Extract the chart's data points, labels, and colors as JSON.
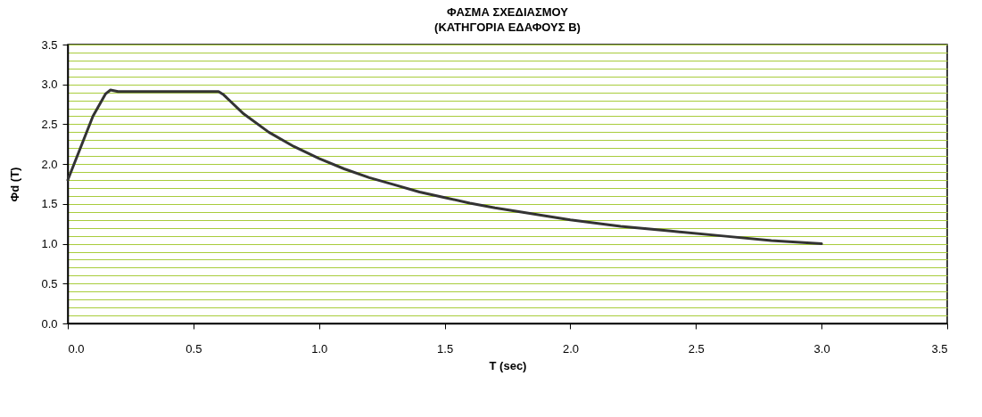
{
  "chart_data": {
    "type": "line",
    "title": "ΦΑΣΜΑ ΣΧΕΔΙΑΣΜΟΥ",
    "subtitle": "(ΚΑΤΗΓΟΡΙΑ ΕΔΑΦΟΥΣ Β)",
    "xlabel": "T (sec)",
    "ylabel": "Φd (T)",
    "x": [
      0,
      0.05,
      0.1,
      0.15,
      0.17,
      0.2,
      0.3,
      0.4,
      0.5,
      0.6,
      0.62,
      0.7,
      0.8,
      0.9,
      1.0,
      1.1,
      1.2,
      1.3,
      1.4,
      1.5,
      1.6,
      1.7,
      1.8,
      1.9,
      2.0,
      2.2,
      2.4,
      2.6,
      2.8,
      3.0
    ],
    "series": [
      {
        "color": "#333333",
        "values": [
          1.8,
          2.2,
          2.6,
          2.88,
          2.93,
          2.91,
          2.91,
          2.91,
          2.91,
          2.91,
          2.87,
          2.63,
          2.4,
          2.22,
          2.07,
          1.94,
          1.83,
          1.74,
          1.65,
          1.58,
          1.51,
          1.45,
          1.4,
          1.35,
          1.3,
          1.22,
          1.16,
          1.1,
          1.04,
          1.0
        ]
      }
    ],
    "xlim": [
      0,
      3.5
    ],
    "xticks": [
      {
        "value": 0,
        "label": "0.0"
      },
      {
        "value": 0.5,
        "label": "0.5"
      },
      {
        "value": 1,
        "label": "1.0"
      },
      {
        "value": 1.5,
        "label": "1.5"
      },
      {
        "value": 2,
        "label": "2.0"
      },
      {
        "value": 2.5,
        "label": "2.5"
      },
      {
        "value": 3,
        "label": "3.0"
      },
      {
        "value": 3.5,
        "label": "3.5"
      }
    ],
    "ylim": [
      0,
      3.5
    ],
    "yticks": [
      {
        "value": 0,
        "label": "0.0"
      },
      {
        "value": 0.1,
        "label": null
      },
      {
        "value": 0.2,
        "label": null
      },
      {
        "value": 0.3,
        "label": null
      },
      {
        "value": 0.4,
        "label": null
      },
      {
        "value": 0.5,
        "label": "0.5"
      },
      {
        "value": 0.6,
        "label": null
      },
      {
        "value": 0.7,
        "label": null
      },
      {
        "value": 0.8,
        "label": null
      },
      {
        "value": 0.9,
        "label": null
      },
      {
        "value": 1,
        "label": "1.0"
      },
      {
        "value": 1.1,
        "label": null
      },
      {
        "value": 1.2,
        "label": null
      },
      {
        "value": 1.3,
        "label": null
      },
      {
        "value": 1.4,
        "label": null
      },
      {
        "value": 1.5,
        "label": "1.5"
      },
      {
        "value": 1.6,
        "label": null
      },
      {
        "value": 1.7,
        "label": null
      },
      {
        "value": 1.8,
        "label": null
      },
      {
        "value": 1.9,
        "label": null
      },
      {
        "value": 2,
        "label": "2.0"
      },
      {
        "value": 2.1,
        "label": null
      },
      {
        "value": 2.2,
        "label": null
      },
      {
        "value": 2.3,
        "label": null
      },
      {
        "value": 2.4,
        "label": null
      },
      {
        "value": 2.5,
        "label": "2.5"
      },
      {
        "value": 2.6,
        "label": null
      },
      {
        "value": 2.7,
        "label": null
      },
      {
        "value": 2.8,
        "label": null
      },
      {
        "value": 2.9,
        "label": null
      },
      {
        "value": 3,
        "label": "3.0"
      },
      {
        "value": 3.1,
        "label": null
      },
      {
        "value": 3.2,
        "label": null
      },
      {
        "value": 3.3,
        "label": null
      },
      {
        "value": 3.4,
        "label": null
      },
      {
        "value": 3.5,
        "label": "3.5"
      }
    ],
    "grid": "y",
    "legend": false,
    "marker": "none",
    "line_style": "solid"
  }
}
